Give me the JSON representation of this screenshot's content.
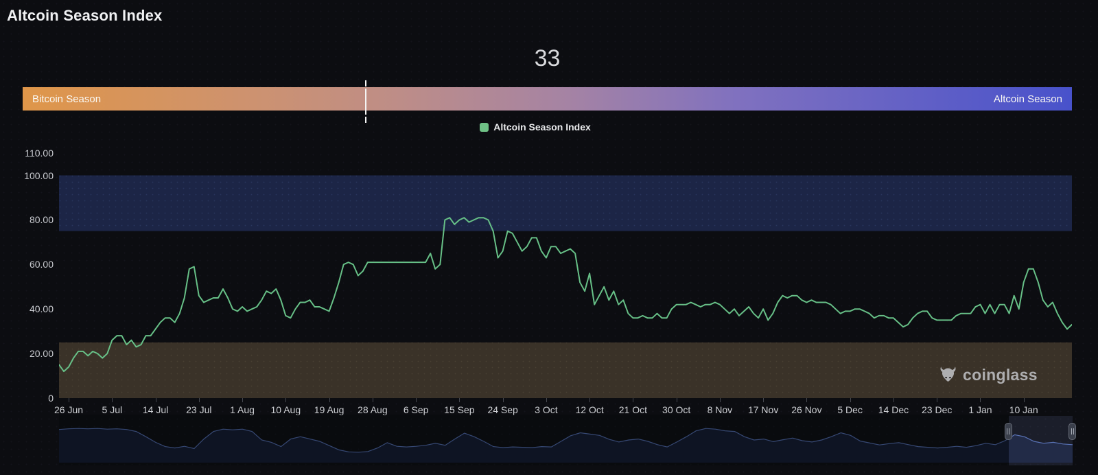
{
  "header": {
    "title": "Altcoin Season Index"
  },
  "gauge": {
    "value": "33",
    "left_label": "Bitcoin Season",
    "right_label": "Altcoin Season",
    "marker_percent": 32.7,
    "marker_color": "#f5f5f5",
    "gradient_stops": [
      "#df9649 0%",
      "#cd9270 22%",
      "#bd8d88 36%",
      "#a583a4 52%",
      "#8071bf 68%",
      "#4852cb 100%"
    ]
  },
  "legend": {
    "label": "Altcoin Season Index",
    "swatch_color": "#6fc186"
  },
  "watermark": {
    "label": "coinglass"
  },
  "chart_data": {
    "type": "line",
    "title": "Altcoin Season Index",
    "ylim": [
      0,
      114
    ],
    "grid": false,
    "legend_position": "top-center",
    "yticks": [
      {
        "label": "110.00",
        "value": 110
      },
      {
        "label": "100.00",
        "value": 100
      },
      {
        "label": "80.00",
        "value": 80
      },
      {
        "label": "60.00",
        "value": 60
      },
      {
        "label": "40.00",
        "value": 40
      },
      {
        "label": "20.00",
        "value": 20
      },
      {
        "label": "0",
        "value": 0
      }
    ],
    "xtick_labels": [
      "26 Jun",
      "5 Jul",
      "14 Jul",
      "23 Jul",
      "1 Aug",
      "10 Aug",
      "19 Aug",
      "28 Aug",
      "6 Sep",
      "15 Sep",
      "24 Sep",
      "3 Oct",
      "12 Oct",
      "21 Oct",
      "30 Oct",
      "8 Nov",
      "17 Nov",
      "26 Nov",
      "5 Dec",
      "14 Dec",
      "23 Dec",
      "1 Jan",
      "10 Jan"
    ],
    "x_first_tick_index": 2,
    "x_tick_step": 9,
    "plot_bands": [
      {
        "name": "altcoin-season-zone",
        "from": 75,
        "to": 100,
        "color": "#1c2546",
        "dot_color": "rgba(110,135,210,0.16)"
      },
      {
        "name": "bitcoin-season-zone",
        "from": 0,
        "to": 25,
        "color": "#3a3228",
        "dot_color": "rgba(215,195,150,0.10)"
      }
    ],
    "series": [
      {
        "name": "Altcoin Season Index",
        "color": "#67c087",
        "values": [
          15,
          12,
          14,
          18,
          21,
          21,
          19,
          21,
          20,
          18,
          20,
          26,
          28,
          28,
          24,
          26,
          23,
          24,
          28,
          28,
          31,
          34,
          36,
          36,
          34,
          38,
          45,
          58,
          59,
          46,
          43,
          44,
          45,
          45,
          49,
          45,
          40,
          39,
          41,
          39,
          40,
          41,
          44,
          48,
          47,
          49,
          44,
          37,
          36,
          40,
          43,
          43,
          44,
          41,
          41,
          40,
          39,
          45,
          52,
          60,
          61,
          60,
          55,
          57,
          61,
          61,
          61,
          61,
          61,
          61,
          61,
          61,
          61,
          61,
          61,
          61,
          61,
          65,
          58,
          60,
          80,
          81,
          78,
          80,
          81,
          79,
          80,
          81,
          81,
          80,
          75,
          63,
          66,
          75,
          74,
          70,
          66,
          68,
          72,
          72,
          66,
          63,
          68,
          68,
          65,
          66,
          67,
          65,
          52,
          48,
          56,
          42,
          46,
          50,
          44,
          48,
          42,
          44,
          38,
          36,
          36,
          37,
          36,
          36,
          38,
          36,
          36,
          40,
          42,
          42,
          42,
          43,
          42,
          41,
          42,
          42,
          43,
          42,
          40,
          38,
          40,
          37,
          39,
          41,
          38,
          36,
          40,
          35,
          38,
          43,
          46,
          45,
          46,
          46,
          44,
          43,
          44,
          43,
          43,
          43,
          42,
          40,
          38,
          39,
          39,
          40,
          40,
          39,
          38,
          36,
          37,
          37,
          36,
          36,
          34,
          32,
          33,
          36,
          38,
          39,
          39,
          36,
          35,
          35,
          35,
          35,
          37,
          38,
          38,
          38,
          41,
          42,
          38,
          42,
          38,
          42,
          42,
          38,
          46,
          40,
          52,
          58,
          58,
          52,
          44,
          41,
          43,
          38,
          34,
          31,
          33
        ]
      }
    ],
    "navigator": {
      "line_color": "#5570b4",
      "fill_color": "#141c33",
      "selection_start_frac": 0.937,
      "selection_end_frac": 1.0,
      "selection_fill": "rgba(118,138,198,0.14)",
      "values": [
        0.84,
        0.86,
        0.87,
        0.86,
        0.87,
        0.85,
        0.86,
        0.84,
        0.78,
        0.62,
        0.45,
        0.32,
        0.28,
        0.33,
        0.26,
        0.55,
        0.78,
        0.85,
        0.83,
        0.85,
        0.78,
        0.52,
        0.45,
        0.32,
        0.55,
        0.62,
        0.55,
        0.48,
        0.35,
        0.22,
        0.16,
        0.15,
        0.17,
        0.28,
        0.44,
        0.33,
        0.31,
        0.33,
        0.36,
        0.42,
        0.36,
        0.55,
        0.73,
        0.62,
        0.48,
        0.32,
        0.29,
        0.31,
        0.3,
        0.29,
        0.32,
        0.31,
        0.48,
        0.65,
        0.74,
        0.7,
        0.66,
        0.54,
        0.46,
        0.52,
        0.55,
        0.48,
        0.38,
        0.31,
        0.46,
        0.62,
        0.8,
        0.87,
        0.85,
        0.8,
        0.78,
        0.62,
        0.52,
        0.55,
        0.47,
        0.53,
        0.58,
        0.5,
        0.46,
        0.52,
        0.62,
        0.74,
        0.66,
        0.49,
        0.43,
        0.37,
        0.41,
        0.44,
        0.38,
        0.32,
        0.3,
        0.28,
        0.3,
        0.33,
        0.3,
        0.35,
        0.42,
        0.38,
        0.5,
        0.68,
        0.62,
        0.48,
        0.42,
        0.45,
        0.4,
        0.38
      ]
    }
  }
}
